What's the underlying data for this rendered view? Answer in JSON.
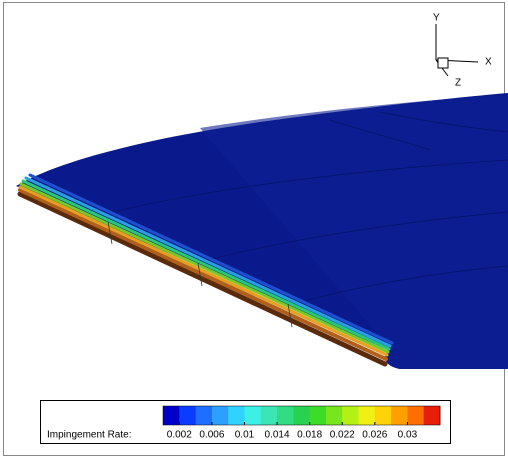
{
  "axes_triad": {
    "x": "X",
    "y": "Y",
    "z": "Z"
  },
  "legend": {
    "label": "Impingement Rate:",
    "lim": [
      0,
      0.034
    ],
    "ticks": [
      0.002,
      0.006,
      0.01,
      0.014,
      0.018,
      0.022,
      0.026,
      0.03
    ],
    "colors": [
      "#0000c8",
      "#0a3cff",
      "#1e6eff",
      "#2da0ff",
      "#30d2ff",
      "#3cf0e6",
      "#3ce6b4",
      "#32dc82",
      "#28d250",
      "#3cdc28",
      "#78e61e",
      "#b4f014",
      "#f0f014",
      "#ffd20a",
      "#ffa000",
      "#ff6e00",
      "#e61e0a"
    ]
  }
}
